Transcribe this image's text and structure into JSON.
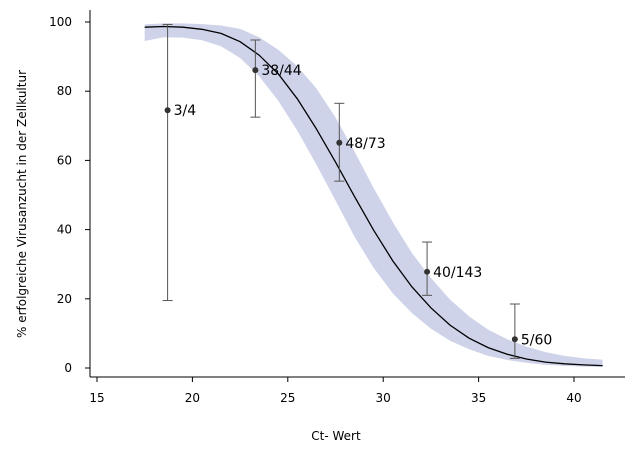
{
  "chart_data": {
    "type": "scatter",
    "title": "",
    "xlabel": "Ct- Wert",
    "ylabel": "% erfolgreiche Virusanzucht in der Zellkultur",
    "xlim": [
      15,
      42
    ],
    "ylim": [
      0,
      100
    ],
    "xticks": [
      15,
      20,
      25,
      30,
      35,
      40
    ],
    "yticks": [
      0,
      20,
      40,
      60,
      80,
      100
    ],
    "grid": false,
    "colors": {
      "band": "#cfd3ea",
      "curve": "#000000",
      "points": "#333333",
      "errorbars": "#555555"
    },
    "points": [
      {
        "x": 18.7,
        "y": 74.5,
        "ci": [
          19.5,
          99.3
        ],
        "label": "3/4"
      },
      {
        "x": 23.3,
        "y": 86.1,
        "ci": [
          72.5,
          94.8
        ],
        "label": "38/44"
      },
      {
        "x": 27.7,
        "y": 65.1,
        "ci": [
          54.0,
          76.5
        ],
        "label": "48/73"
      },
      {
        "x": 32.3,
        "y": 27.8,
        "ci": [
          21.0,
          36.4
        ],
        "label": "40/143"
      },
      {
        "x": 36.9,
        "y": 8.3,
        "ci": [
          2.8,
          18.5
        ],
        "label": "5/60"
      }
    ],
    "fit_curve": {
      "x": [
        17.5,
        18.5,
        19.5,
        20.5,
        21.5,
        22.5,
        23.5,
        24.5,
        25.5,
        26.5,
        27.5,
        28.5,
        29.5,
        30.5,
        31.5,
        32.5,
        33.5,
        34.5,
        35.5,
        36.5,
        37.5,
        38.5,
        39.5,
        40.5,
        41.5
      ],
      "y": [
        98.5,
        98.7,
        98.5,
        97.9,
        96.7,
        94.3,
        90.4,
        85.0,
        77.8,
        69.1,
        59.5,
        49.5,
        39.8,
        31.0,
        23.5,
        17.4,
        12.4,
        8.6,
        5.9,
        4.0,
        2.6,
        1.7,
        1.2,
        0.9,
        0.7
      ],
      "lower": [
        94.5,
        95.6,
        95.5,
        94.7,
        93.0,
        89.6,
        84.3,
        77.2,
        68.6,
        58.8,
        48.4,
        37.9,
        28.9,
        21.6,
        15.9,
        11.4,
        7.9,
        5.4,
        3.5,
        2.3,
        1.5,
        0.9,
        0.6,
        0.4,
        0.3
      ],
      "upper": [
        99.3,
        99.6,
        99.6,
        99.4,
        99.0,
        98.0,
        95.6,
        92.0,
        87.2,
        80.8,
        72.4,
        62.5,
        52.0,
        42.2,
        33.3,
        26.0,
        19.8,
        14.9,
        11.1,
        8.3,
        6.2,
        4.6,
        3.5,
        2.8,
        2.4
      ]
    }
  }
}
